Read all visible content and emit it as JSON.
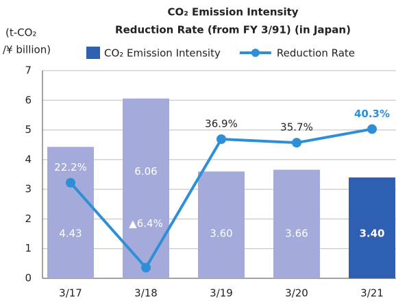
{
  "chart_data": {
    "type": "bar+line",
    "title": [
      "CO₂ Emission Intensity",
      "Reduction Rate (from FY 3/91) (in Japan)"
    ],
    "y_label": [
      "(t-CO₂",
      "/¥ billion)"
    ],
    "categories": [
      "3/17",
      "3/18",
      "3/19",
      "3/20",
      "3/21"
    ],
    "series": [
      {
        "name": "CO₂ Emission Intensity",
        "type": "bar",
        "color": "#2f5fb0",
        "colors": [
          "#a4aad9",
          "#a4aad9",
          "#a4aad9",
          "#a4aad9",
          "#2f5fb0"
        ],
        "values": [
          4.43,
          6.06,
          3.6,
          3.66,
          3.4
        ],
        "value_labels": [
          "4.43",
          "6.06",
          "3.60",
          "3.66",
          "3.40"
        ]
      },
      {
        "name": "Reduction Rate",
        "type": "line",
        "axis": "y2",
        "color": "#2e8fd6",
        "values": [
          22.2,
          -6.4,
          36.9,
          35.7,
          40.3
        ],
        "value_labels": [
          "22.2%",
          "▲6.4%",
          "36.9%",
          "35.7%",
          "40.3%"
        ]
      }
    ],
    "ylim": [
      0,
      7
    ],
    "yticks": [
      0,
      1,
      2,
      3,
      4,
      5,
      6,
      7
    ],
    "y2lim": [
      -10,
      60
    ],
    "grid": true,
    "legend": "top"
  }
}
